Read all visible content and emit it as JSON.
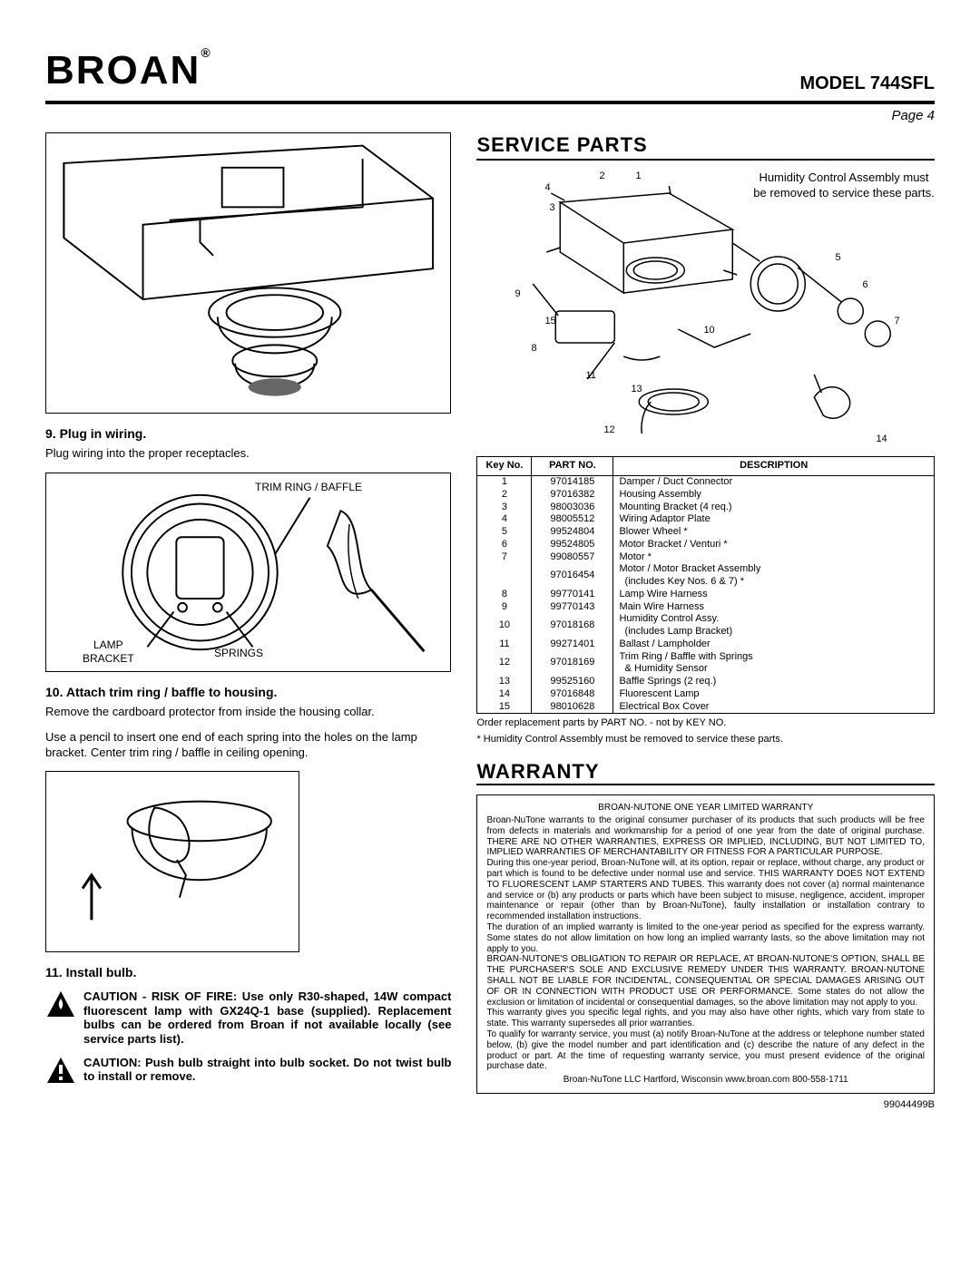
{
  "brand": "BROAN",
  "reg_symbol": "®",
  "model": "MODEL 744SFL",
  "page_label": "Page 4",
  "doc_number": "99044499B",
  "left": {
    "step9_title": "9. Plug in wiring.",
    "step9_text": "Plug wiring into the proper receptacles.",
    "fig2_labels": {
      "trim_ring": "TRIM RING / BAFFLE",
      "lamp_bracket": "LAMP\nBRACKET",
      "springs": "SPRINGS"
    },
    "step10_title": "10. Attach trim ring / baffle to housing.",
    "step10_text1": "Remove the cardboard protector from inside the housing collar.",
    "step10_text2": "Use a pencil to insert one end of each spring into the holes on the lamp bracket. Center trim ring / baffle in ceiling opening.",
    "step11_title": "11. Install bulb.",
    "caution1": "CAUTION - RISK OF FIRE: Use only R30-shaped, 14W compact fluorescent lamp with GX24Q-1 base (supplied). Replacement bulbs can be ordered from Broan if not available locally (see service parts list).",
    "caution2": "CAUTION: Push bulb straight into bulb socket. Do not twist bulb to install or remove."
  },
  "right": {
    "service_parts_title": "SERVICE PARTS",
    "exploded_note": "Humidity Control Assembly must be removed to service these parts.",
    "callouts": [
      "1",
      "2",
      "3",
      "4",
      "5",
      "6",
      "7",
      "8",
      "9",
      "10",
      "11",
      "12",
      "13",
      "14",
      "15"
    ],
    "table_headers": [
      "Key No.",
      "PART NO.",
      "DESCRIPTION"
    ],
    "parts": [
      {
        "key": "1",
        "part": "97014185",
        "desc": "Damper / Duct Connector"
      },
      {
        "key": "2",
        "part": "97016382",
        "desc": "Housing Assembly"
      },
      {
        "key": "3",
        "part": "98003036",
        "desc": "Mounting Bracket (4 req.)"
      },
      {
        "key": "4",
        "part": "98005512",
        "desc": "Wiring Adaptor Plate"
      },
      {
        "key": "5",
        "part": "99524804",
        "desc": "Blower Wheel *"
      },
      {
        "key": "6",
        "part": "99524805",
        "desc": "Motor Bracket / Venturi *"
      },
      {
        "key": "7",
        "part": "99080557",
        "desc": "Motor *"
      },
      {
        "key": "",
        "part": "97016454",
        "desc": "Motor / Motor Bracket Assembly\n(includes Key Nos. 6 & 7) *"
      },
      {
        "key": "8",
        "part": "99770141",
        "desc": "Lamp Wire Harness"
      },
      {
        "key": "9",
        "part": "99770143",
        "desc": "Main Wire Harness"
      },
      {
        "key": "10",
        "part": "97018168",
        "desc": "Humidity Control Assy.\n(includes Lamp Bracket)"
      },
      {
        "key": "11",
        "part": "99271401",
        "desc": "Ballast / Lampholder"
      },
      {
        "key": "12",
        "part": "97018169",
        "desc": "Trim Ring / Baffle with Springs\n& Humidity Sensor"
      },
      {
        "key": "13",
        "part": "99525160",
        "desc": "Baffle Springs (2 req.)"
      },
      {
        "key": "14",
        "part": "97016848",
        "desc": "Fluorescent Lamp"
      },
      {
        "key": "15",
        "part": "98010628",
        "desc": "Electrical Box Cover"
      }
    ],
    "parts_note": "Order replacement parts by PART NO. - not by KEY NO.",
    "parts_note2": "* Humidity Control Assembly must be removed to service these parts.",
    "warranty_title": "WARRANTY",
    "warranty_head": "BROAN-NUTONE ONE YEAR LIMITED WARRANTY",
    "warranty_p1": "Broan-NuTone warrants to the original consumer purchaser of its products that such products will be free from defects in materials and workmanship for a period of one year from the date of original purchase. THERE ARE NO OTHER WARRANTIES, EXPRESS OR IMPLIED, INCLUDING, BUT NOT LIMITED TO, IMPLIED WARRANTIES OF MERCHANTABILITY OR FITNESS FOR A PARTICULAR PURPOSE.",
    "warranty_p2": "During this one-year period, Broan-NuTone will, at its option, repair or replace, without charge, any product or part which is found to be defective under normal use and service. THIS WARRANTY DOES NOT EXTEND TO FLUORESCENT LAMP STARTERS AND TUBES. This warranty does not cover (a) normal maintenance and service or (b) any products or parts which have been subject to misuse, negligence, accident, improper maintenance or repair (other than by Broan-NuTone), faulty installation or installation contrary to recommended installation instructions.",
    "warranty_p3": "The duration of an implied warranty is limited to the one-year period as specified for the express warranty. Some states do not allow limitation on how long an implied warranty lasts, so the above limitation may not apply to you.",
    "warranty_p4": "BROAN-NUTONE'S OBLIGATION TO REPAIR OR REPLACE, AT BROAN-NUTONE'S OPTION, SHALL BE THE PURCHASER'S SOLE AND EXCLUSIVE REMEDY UNDER THIS WARRANTY. BROAN-NUTONE SHALL NOT BE LIABLE FOR INCIDENTAL, CONSEQUENTIAL OR SPECIAL DAMAGES ARISING OUT OF OR IN CONNECTION WITH PRODUCT USE OR PERFORMANCE. Some states do not allow the exclusion or limitation of incidental or consequential damages, so the above limitation may not apply to you.",
    "warranty_p5": "This warranty gives you specific legal rights, and you may also have other rights, which vary from state to state. This warranty supersedes all prior warranties.",
    "warranty_p6": "To qualify for warranty service, you must (a) notify Broan-NuTone at the address or telephone number stated below, (b) give the model number and part identification and (c) describe the nature of any defect in the product or part. At the time of requesting warranty service, you must present evidence of the original purchase date.",
    "warranty_foot": "Broan-NuTone LLC   Hartford, Wisconsin   www.broan.com   800-558-1711"
  },
  "colors": {
    "text": "#000000",
    "bg": "#ffffff",
    "border": "#000000"
  }
}
